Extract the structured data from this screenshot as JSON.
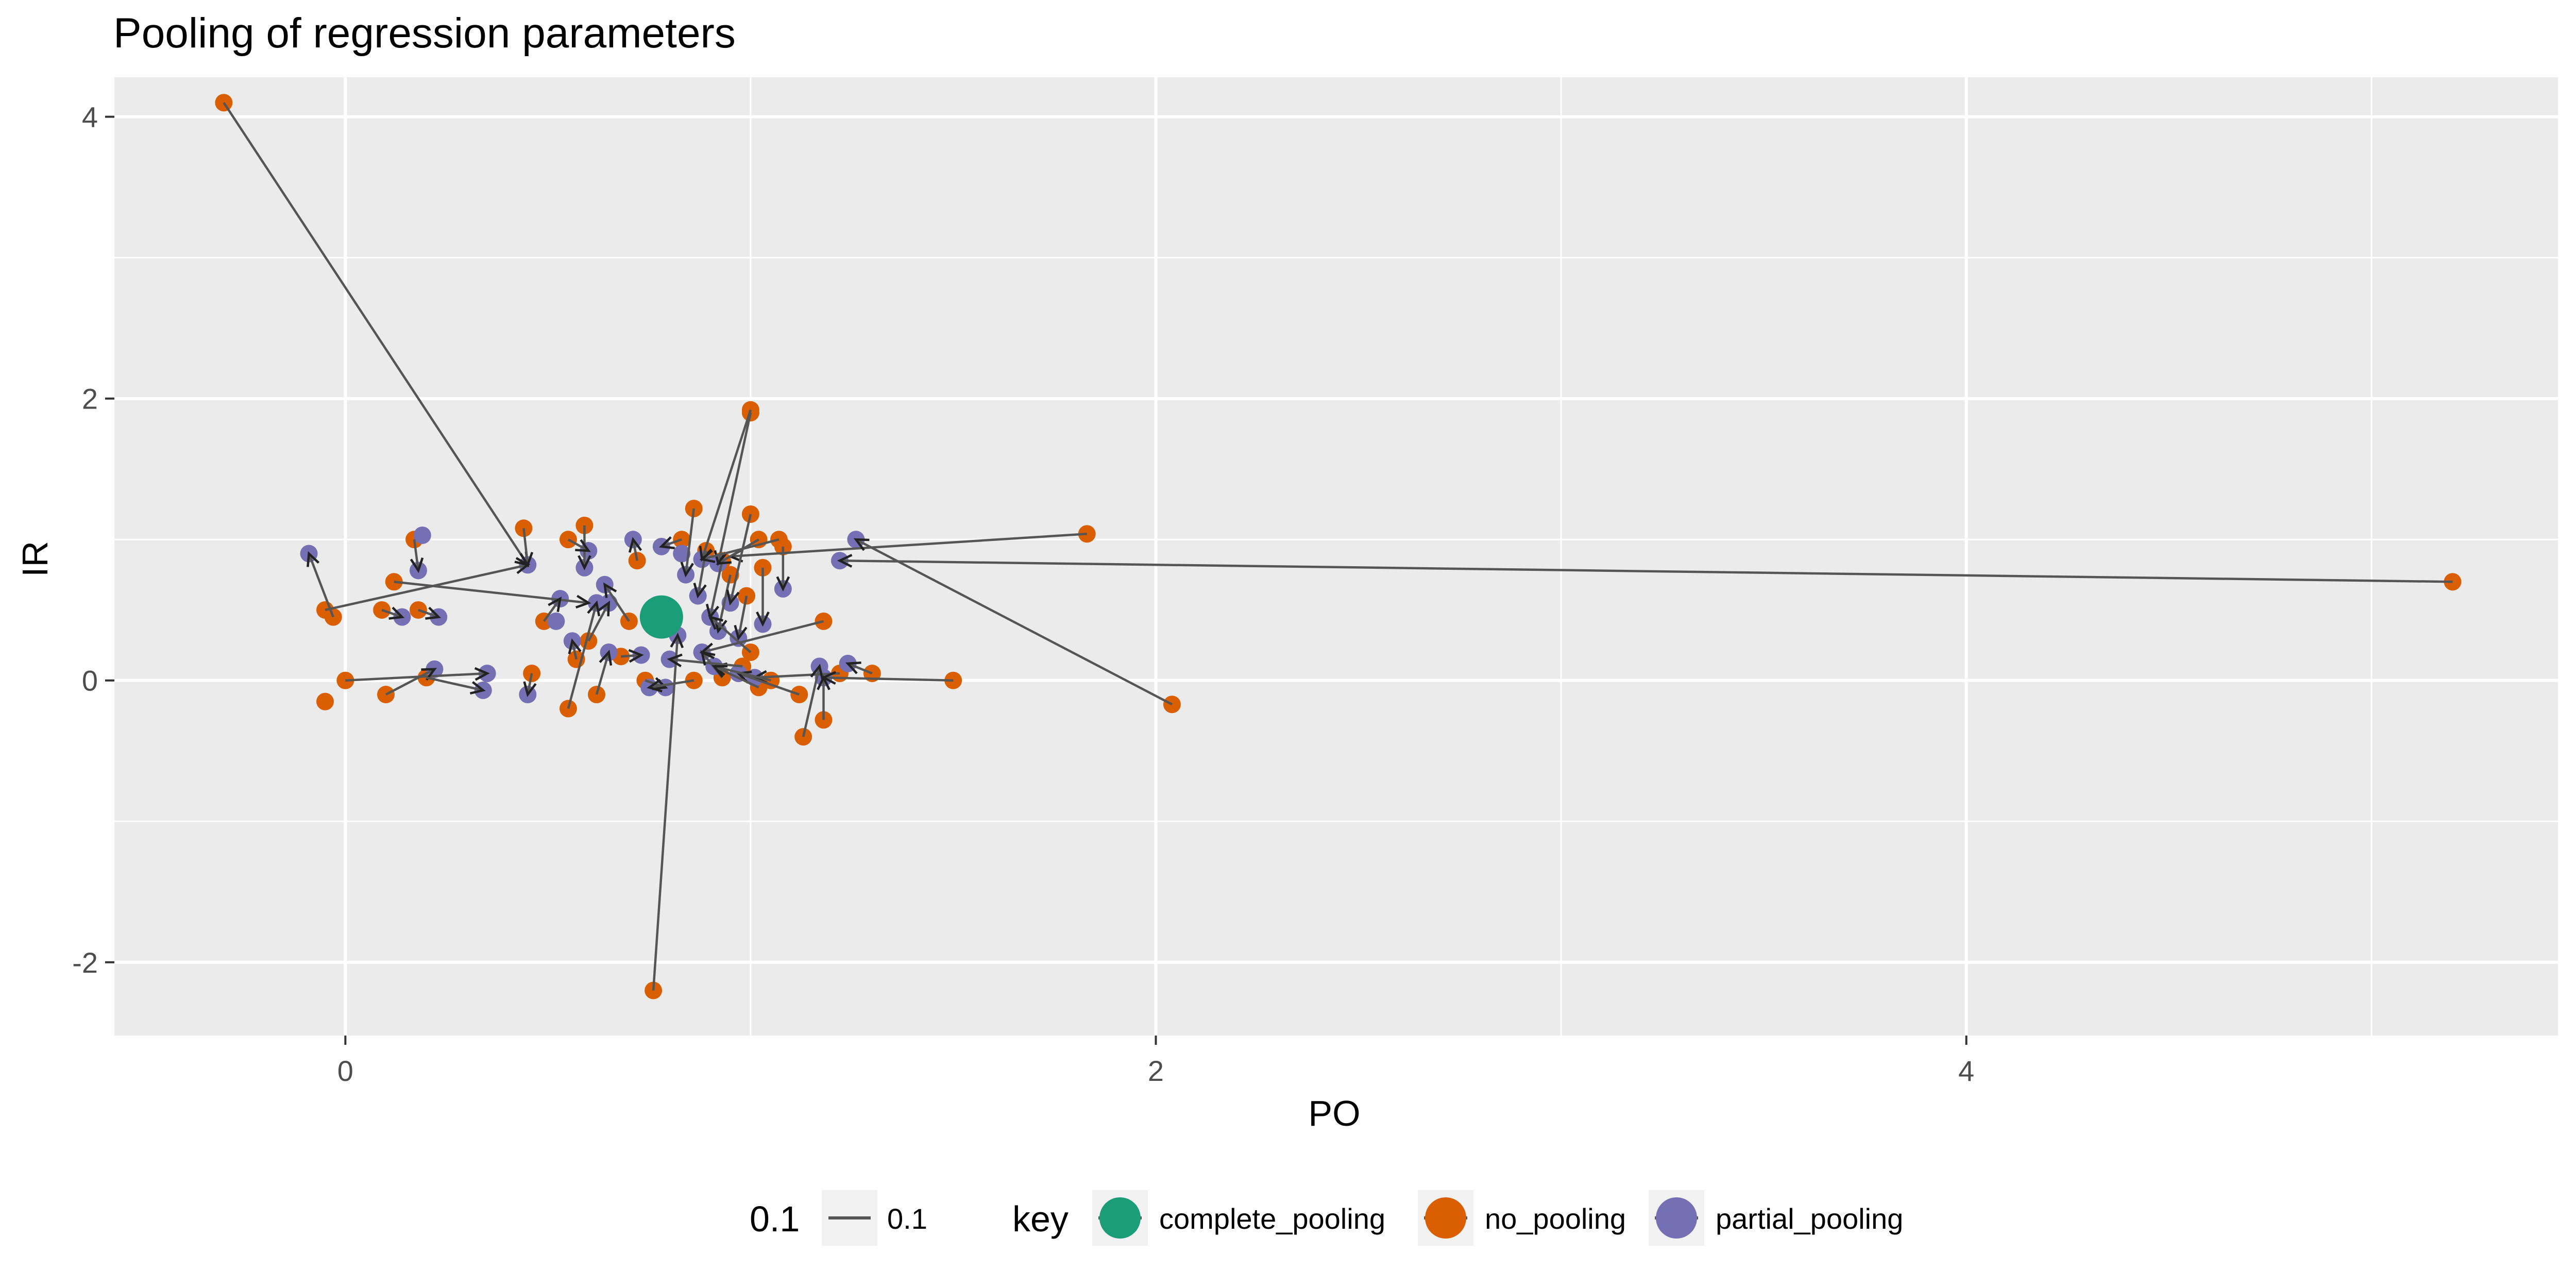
{
  "chart_data": {
    "type": "scatter",
    "title": "Pooling of regression parameters",
    "xlabel": "PO",
    "ylabel": "IR",
    "xlim": [
      -0.57,
      5.46
    ],
    "ylim": [
      -2.52,
      4.28
    ],
    "x_ticks": [
      0,
      2,
      4
    ],
    "x_minor": [
      1,
      3,
      5
    ],
    "y_ticks": [
      -2,
      0,
      2,
      4
    ],
    "y_minor": [
      -1,
      1,
      3
    ],
    "x_tick_labels": [
      "0",
      "2",
      "4"
    ],
    "y_tick_labels": [
      "-2",
      "0",
      "2",
      "4"
    ],
    "grid": true,
    "legend_position": "bottom",
    "legend": {
      "line_title": "0.1",
      "line_label": "0.1",
      "key_title": "key",
      "entries": [
        "complete_pooling",
        "no_pooling",
        "partial_pooling"
      ]
    },
    "colors": {
      "complete_pooling": "#1b9e77",
      "no_pooling": "#d95f02",
      "partial_pooling": "#7570b3",
      "arrow": "#555555",
      "panel": "#ebebeb",
      "grid": "#ffffff"
    },
    "complete_pooling": {
      "x": 0.78,
      "y": 0.45
    },
    "series": [
      {
        "name": "no_pooling",
        "points": [
          [
            -0.3,
            4.1
          ],
          [
            1.0,
            1.92
          ],
          [
            1.0,
            1.9
          ],
          [
            0.76,
            -2.2
          ],
          [
            1.83,
            1.04
          ],
          [
            2.04,
            -0.17
          ],
          [
            5.2,
            0.7
          ],
          [
            0.44,
            1.08
          ],
          [
            0.59,
            1.1
          ],
          [
            0.55,
            1.0
          ],
          [
            0.17,
            1.0
          ],
          [
            0.12,
            0.7
          ],
          [
            -0.05,
            0.5
          ],
          [
            -0.03,
            0.45
          ],
          [
            0.09,
            0.5
          ],
          [
            0.18,
            0.5
          ],
          [
            0.49,
            0.42
          ],
          [
            0.6,
            0.28
          ],
          [
            0.57,
            0.15
          ],
          [
            0.55,
            -0.2
          ],
          [
            0.62,
            -0.1
          ],
          [
            -0.05,
            -0.15
          ],
          [
            0.0,
            0.0
          ],
          [
            0.1,
            -0.1
          ],
          [
            0.2,
            0.02
          ],
          [
            0.46,
            0.05
          ],
          [
            0.68,
            0.17
          ],
          [
            0.74,
            0.0
          ],
          [
            0.86,
            1.22
          ],
          [
            0.83,
            1.0
          ],
          [
            0.89,
            0.92
          ],
          [
            0.93,
            0.85
          ],
          [
            0.95,
            0.75
          ],
          [
            0.99,
            0.6
          ],
          [
            1.0,
            1.18
          ],
          [
            1.02,
            1.0
          ],
          [
            1.07,
            1.0
          ],
          [
            1.08,
            0.95
          ],
          [
            1.03,
            0.8
          ],
          [
            1.18,
            0.42
          ],
          [
            1.22,
            0.05
          ],
          [
            1.3,
            0.05
          ],
          [
            1.12,
            -0.1
          ],
          [
            1.13,
            -0.4
          ],
          [
            1.18,
            -0.28
          ],
          [
            1.05,
            0.0
          ],
          [
            0.98,
            0.1
          ],
          [
            0.86,
            0.0
          ],
          [
            0.72,
            0.85
          ],
          [
            0.7,
            0.42
          ],
          [
            1.5,
            0.0
          ],
          [
            1.0,
            0.2
          ],
          [
            0.93,
            0.02
          ],
          [
            1.02,
            -0.05
          ]
        ]
      },
      {
        "name": "partial_pooling",
        "points": [
          [
            -0.09,
            0.9
          ],
          [
            0.19,
            1.03
          ],
          [
            0.18,
            0.78
          ],
          [
            0.14,
            0.45
          ],
          [
            0.23,
            0.45
          ],
          [
            0.45,
            0.82
          ],
          [
            0.6,
            0.92
          ],
          [
            0.59,
            0.8
          ],
          [
            0.71,
            1.0
          ],
          [
            0.64,
            0.68
          ],
          [
            0.53,
            0.58
          ],
          [
            0.62,
            0.55
          ],
          [
            0.65,
            0.55
          ],
          [
            0.52,
            0.42
          ],
          [
            0.56,
            0.28
          ],
          [
            0.65,
            0.2
          ],
          [
            0.73,
            0.18
          ],
          [
            0.8,
            0.15
          ],
          [
            0.75,
            -0.05
          ],
          [
            0.79,
            -0.05
          ],
          [
            0.45,
            -0.1
          ],
          [
            0.35,
            0.05
          ],
          [
            0.34,
            -0.07
          ],
          [
            0.22,
            0.08
          ],
          [
            0.78,
            0.95
          ],
          [
            0.83,
            0.9
          ],
          [
            0.88,
            0.86
          ],
          [
            0.92,
            0.83
          ],
          [
            0.84,
            0.75
          ],
          [
            0.87,
            0.6
          ],
          [
            0.9,
            0.45
          ],
          [
            0.92,
            0.35
          ],
          [
            0.88,
            0.2
          ],
          [
            0.91,
            0.1
          ],
          [
            0.97,
            0.05
          ],
          [
            1.01,
            0.02
          ],
          [
            1.08,
            0.65
          ],
          [
            1.22,
            0.85
          ],
          [
            1.26,
            1.0
          ],
          [
            1.17,
            0.1
          ],
          [
            1.24,
            0.12
          ],
          [
            1.18,
            0.02
          ],
          [
            0.95,
            0.55
          ],
          [
            0.97,
            0.3
          ],
          [
            1.03,
            0.4
          ],
          [
            0.82,
            0.32
          ]
        ]
      }
    ],
    "arrows": [
      [
        -0.3,
        4.1,
        0.45,
        0.82
      ],
      [
        1.0,
        1.92,
        0.88,
        0.86
      ],
      [
        1.0,
        1.9,
        0.92,
        0.83
      ],
      [
        0.76,
        -2.2,
        0.82,
        0.32
      ],
      [
        1.83,
        1.04,
        0.95,
        0.88
      ],
      [
        2.04,
        -0.17,
        1.26,
        1.0
      ],
      [
        5.2,
        0.7,
        1.22,
        0.85
      ],
      [
        -0.05,
        0.5,
        0.45,
        0.82
      ],
      [
        0.0,
        0.0,
        0.35,
        0.05
      ],
      [
        0.1,
        -0.1,
        0.22,
        0.08
      ],
      [
        0.2,
        0.02,
        0.34,
        -0.07
      ],
      [
        0.17,
        1.0,
        0.18,
        0.78
      ],
      [
        -0.03,
        0.45,
        -0.09,
        0.9
      ],
      [
        0.12,
        0.7,
        0.6,
        0.55
      ],
      [
        0.09,
        0.5,
        0.14,
        0.45
      ],
      [
        0.18,
        0.5,
        0.23,
        0.45
      ],
      [
        0.44,
        1.08,
        0.45,
        0.82
      ],
      [
        0.59,
        1.1,
        0.59,
        0.8
      ],
      [
        0.55,
        1.0,
        0.6,
        0.92
      ],
      [
        0.49,
        0.42,
        0.53,
        0.58
      ],
      [
        0.6,
        0.28,
        0.65,
        0.55
      ],
      [
        0.57,
        0.15,
        0.56,
        0.28
      ],
      [
        0.55,
        -0.2,
        0.62,
        0.55
      ],
      [
        0.62,
        -0.1,
        0.65,
        0.2
      ],
      [
        0.46,
        0.05,
        0.45,
        -0.1
      ],
      [
        0.68,
        0.17,
        0.73,
        0.18
      ],
      [
        0.74,
        0.0,
        0.79,
        -0.05
      ],
      [
        0.86,
        1.22,
        0.84,
        0.75
      ],
      [
        0.83,
        1.0,
        0.78,
        0.95
      ],
      [
        0.89,
        0.92,
        0.87,
        0.6
      ],
      [
        0.93,
        0.85,
        0.9,
        0.45
      ],
      [
        0.95,
        0.75,
        0.92,
        0.35
      ],
      [
        0.99,
        0.6,
        0.97,
        0.3
      ],
      [
        1.0,
        1.18,
        0.95,
        0.55
      ],
      [
        1.02,
        1.0,
        0.92,
        0.83
      ],
      [
        1.07,
        1.0,
        0.88,
        0.86
      ],
      [
        1.08,
        0.95,
        1.08,
        0.65
      ],
      [
        1.03,
        0.8,
        1.03,
        0.4
      ],
      [
        1.18,
        0.42,
        0.88,
        0.2
      ],
      [
        1.22,
        0.05,
        1.01,
        0.02
      ],
      [
        1.3,
        0.05,
        1.24,
        0.12
      ],
      [
        1.12,
        -0.1,
        0.97,
        0.05
      ],
      [
        1.13,
        -0.4,
        1.17,
        0.1
      ],
      [
        1.18,
        -0.28,
        1.18,
        0.02
      ],
      [
        1.05,
        0.0,
        0.91,
        0.1
      ],
      [
        0.98,
        0.1,
        0.8,
        0.15
      ],
      [
        0.86,
        0.0,
        0.75,
        -0.05
      ],
      [
        0.72,
        0.85,
        0.71,
        1.0
      ],
      [
        0.7,
        0.42,
        0.64,
        0.68
      ],
      [
        1.5,
        0.0,
        1.18,
        0.02
      ],
      [
        1.0,
        0.2,
        0.9,
        0.45
      ],
      [
        0.93,
        0.02,
        0.88,
        0.2
      ],
      [
        1.02,
        -0.05,
        0.91,
        0.1
      ]
    ]
  }
}
